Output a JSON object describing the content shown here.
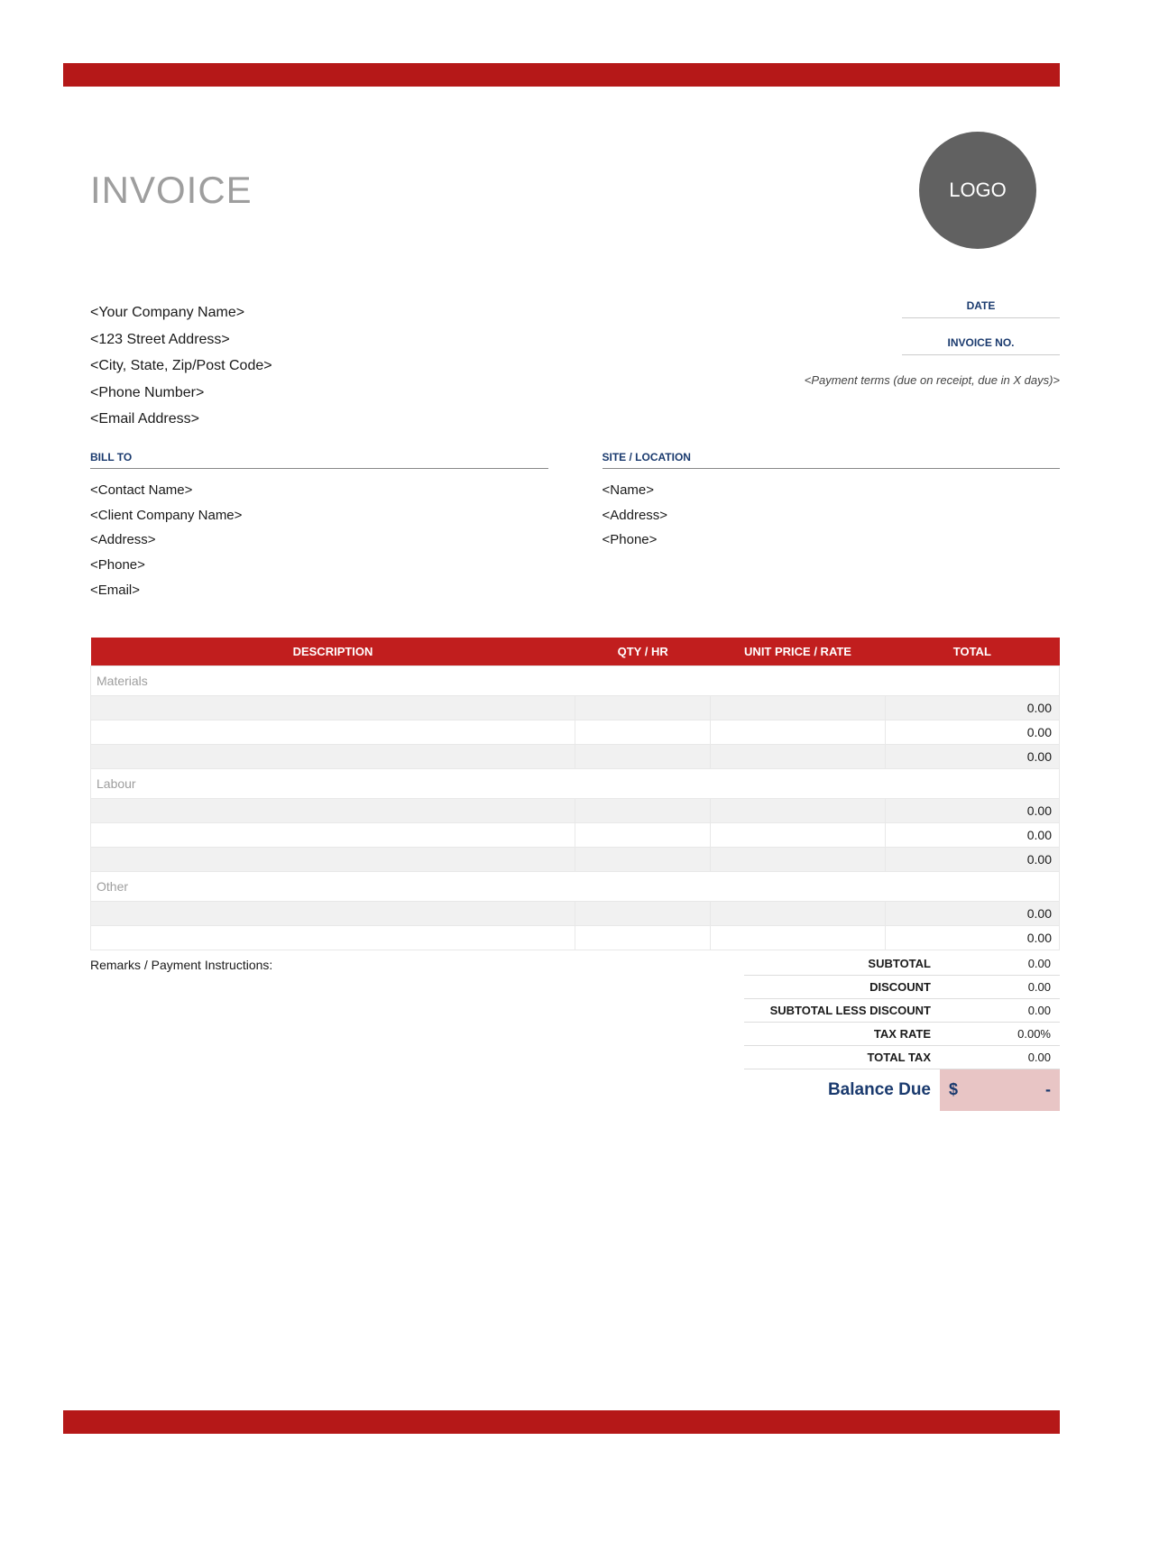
{
  "colors": {
    "accent_red": "#b51818",
    "header_red": "#c11e1e",
    "logo_gray": "#616161",
    "title_gray": "#9e9e9e",
    "label_navy": "#1a3a6e",
    "text_dark": "#1a1a1a",
    "row_alt_bg": "#f1f1f1",
    "border_light": "#e8e8e8",
    "balance_bg": "#e8c5c5"
  },
  "title": "INVOICE",
  "logo_text": "LOGO",
  "company": {
    "name": "<Your Company Name>",
    "street": "<123 Street Address>",
    "city": "<City, State, Zip/Post Code>",
    "phone": "<Phone Number>",
    "email": "<Email Address>"
  },
  "meta": {
    "date_label": "DATE",
    "invoice_no_label": "INVOICE NO.",
    "payment_terms": "<Payment terms (due on receipt, due in X days)>"
  },
  "bill_to": {
    "header": "BILL TO",
    "contact": "<Contact Name>",
    "company": "<Client Company Name>",
    "address": "<Address>",
    "phone": "<Phone>",
    "email": "<Email>"
  },
  "site": {
    "header": "SITE / LOCATION",
    "name": "<Name>",
    "address": "<Address>",
    "phone": "<Phone>"
  },
  "table": {
    "columns": {
      "description": "DESCRIPTION",
      "qty": "QTY / HR",
      "price": "UNIT PRICE / RATE",
      "total": "TOTAL"
    },
    "sections": [
      {
        "name": "Materials",
        "rows": [
          {
            "desc": "",
            "qty": "",
            "price": "",
            "total": "0.00"
          },
          {
            "desc": "",
            "qty": "",
            "price": "",
            "total": "0.00"
          },
          {
            "desc": "",
            "qty": "",
            "price": "",
            "total": "0.00"
          }
        ]
      },
      {
        "name": "Labour",
        "rows": [
          {
            "desc": "",
            "qty": "",
            "price": "",
            "total": "0.00"
          },
          {
            "desc": "",
            "qty": "",
            "price": "",
            "total": "0.00"
          },
          {
            "desc": "",
            "qty": "",
            "price": "",
            "total": "0.00"
          }
        ]
      },
      {
        "name": "Other",
        "rows": [
          {
            "desc": "",
            "qty": "",
            "price": "",
            "total": "0.00"
          },
          {
            "desc": "",
            "qty": "",
            "price": "",
            "total": "0.00"
          }
        ]
      }
    ]
  },
  "remarks_label": "Remarks / Payment Instructions:",
  "summary": {
    "subtotal": {
      "label": "SUBTOTAL",
      "value": "0.00"
    },
    "discount": {
      "label": "DISCOUNT",
      "value": "0.00"
    },
    "subtotal_less": {
      "label": "SUBTOTAL LESS DISCOUNT",
      "value": "0.00"
    },
    "tax_rate": {
      "label": "TAX RATE",
      "value": "0.00%"
    },
    "total_tax": {
      "label": "TOTAL TAX",
      "value": "0.00"
    },
    "balance": {
      "label": "Balance Due",
      "currency": "$",
      "amount": "-"
    }
  }
}
